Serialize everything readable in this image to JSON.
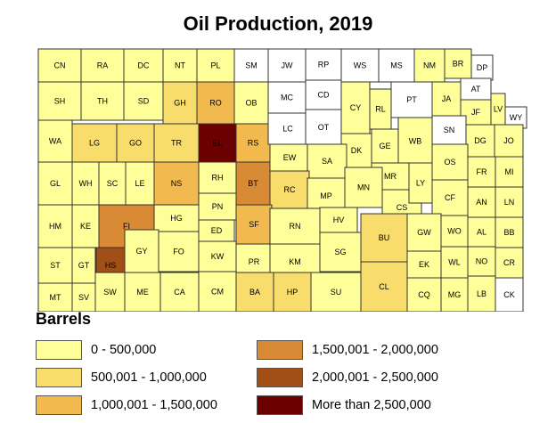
{
  "title": "Oil Production, 2019",
  "legend": {
    "title": "Barrels",
    "classes": [
      {
        "label": "0 - 500,000",
        "color": "#ffff99"
      },
      {
        "label": "500,001 - 1,000,000",
        "color": "#f8dc6c"
      },
      {
        "label": "1,000,001 - 1,500,000",
        "color": "#f2b94f"
      },
      {
        "label": "1,500,001 - 2,000,000",
        "color": "#d98a35"
      },
      {
        "label": "2,000,001 - 2,500,000",
        "color": "#a24f17"
      },
      {
        "label": "More than 2,500,000",
        "color": "#6b0000"
      }
    ],
    "no_data_color": "#ffffff"
  },
  "counties": [
    {
      "abbr": "CN",
      "cls": 0
    },
    {
      "abbr": "RA",
      "cls": 0
    },
    {
      "abbr": "DC",
      "cls": 0
    },
    {
      "abbr": "NT",
      "cls": 0
    },
    {
      "abbr": "PL",
      "cls": 0
    },
    {
      "abbr": "SM",
      "cls": -1
    },
    {
      "abbr": "JW",
      "cls": -1
    },
    {
      "abbr": "RP",
      "cls": -1
    },
    {
      "abbr": "WS",
      "cls": -1
    },
    {
      "abbr": "MS",
      "cls": -1
    },
    {
      "abbr": "NM",
      "cls": 0
    },
    {
      "abbr": "BR",
      "cls": 0
    },
    {
      "abbr": "DP",
      "cls": -1
    },
    {
      "abbr": "SH",
      "cls": 0
    },
    {
      "abbr": "TH",
      "cls": 0
    },
    {
      "abbr": "SD",
      "cls": 0
    },
    {
      "abbr": "GH",
      "cls": 1
    },
    {
      "abbr": "RO",
      "cls": 2
    },
    {
      "abbr": "OB",
      "cls": 0
    },
    {
      "abbr": "MC",
      "cls": -1
    },
    {
      "abbr": "CD",
      "cls": -1
    },
    {
      "abbr": "CY",
      "cls": 0
    },
    {
      "abbr": "RL",
      "cls": 0
    },
    {
      "abbr": "PT",
      "cls": -1
    },
    {
      "abbr": "JA",
      "cls": 0
    },
    {
      "abbr": "AT",
      "cls": -1
    },
    {
      "abbr": "JF",
      "cls": 0
    },
    {
      "abbr": "LV",
      "cls": 0
    },
    {
      "abbr": "WY",
      "cls": -1
    },
    {
      "abbr": "WA",
      "cls": 0
    },
    {
      "abbr": "LG",
      "cls": 1
    },
    {
      "abbr": "GO",
      "cls": 1
    },
    {
      "abbr": "TR",
      "cls": 1
    },
    {
      "abbr": "EL",
      "cls": 5
    },
    {
      "abbr": "RS",
      "cls": 2
    },
    {
      "abbr": "LC",
      "cls": -1
    },
    {
      "abbr": "OT",
      "cls": -1
    },
    {
      "abbr": "DK",
      "cls": 0
    },
    {
      "abbr": "GE",
      "cls": 0
    },
    {
      "abbr": "WB",
      "cls": 0
    },
    {
      "abbr": "SN",
      "cls": -1
    },
    {
      "abbr": "DG",
      "cls": 0
    },
    {
      "abbr": "JO",
      "cls": 0
    },
    {
      "abbr": "GL",
      "cls": 0
    },
    {
      "abbr": "WH",
      "cls": 0
    },
    {
      "abbr": "SC",
      "cls": 0
    },
    {
      "abbr": "LE",
      "cls": 0
    },
    {
      "abbr": "NS",
      "cls": 2
    },
    {
      "abbr": "RH",
      "cls": 0
    },
    {
      "abbr": "BT",
      "cls": 3
    },
    {
      "abbr": "EW",
      "cls": 0
    },
    {
      "abbr": "SA",
      "cls": 0
    },
    {
      "abbr": "MR",
      "cls": 0
    },
    {
      "abbr": "OS",
      "cls": 0
    },
    {
      "abbr": "FR",
      "cls": 0
    },
    {
      "abbr": "MI",
      "cls": 0
    },
    {
      "abbr": "RC",
      "cls": 1
    },
    {
      "abbr": "MP",
      "cls": 0
    },
    {
      "abbr": "MN",
      "cls": 0
    },
    {
      "abbr": "CS",
      "cls": 0
    },
    {
      "abbr": "LY",
      "cls": 0
    },
    {
      "abbr": "CF",
      "cls": 0
    },
    {
      "abbr": "AN",
      "cls": 0
    },
    {
      "abbr": "LN",
      "cls": 0
    },
    {
      "abbr": "HM",
      "cls": 0
    },
    {
      "abbr": "KE",
      "cls": 0
    },
    {
      "abbr": "FI",
      "cls": 3
    },
    {
      "abbr": "HG",
      "cls": 0
    },
    {
      "abbr": "PN",
      "cls": 0
    },
    {
      "abbr": "SF",
      "cls": 2
    },
    {
      "abbr": "RN",
      "cls": 0
    },
    {
      "abbr": "HV",
      "cls": 0
    },
    {
      "abbr": "BU",
      "cls": 1
    },
    {
      "abbr": "GW",
      "cls": 0
    },
    {
      "abbr": "WO",
      "cls": 0
    },
    {
      "abbr": "AL",
      "cls": 0
    },
    {
      "abbr": "BB",
      "cls": 0
    },
    {
      "abbr": "ED",
      "cls": 0
    },
    {
      "abbr": "GY",
      "cls": 0
    },
    {
      "abbr": "FO",
      "cls": 0
    },
    {
      "abbr": "ST",
      "cls": 0
    },
    {
      "abbr": "GT",
      "cls": 0
    },
    {
      "abbr": "HS",
      "cls": 4
    },
    {
      "abbr": "KW",
      "cls": 0
    },
    {
      "abbr": "PR",
      "cls": 0
    },
    {
      "abbr": "KM",
      "cls": 0
    },
    {
      "abbr": "SG",
      "cls": 0
    },
    {
      "abbr": "EK",
      "cls": 0
    },
    {
      "abbr": "WL",
      "cls": 0
    },
    {
      "abbr": "NO",
      "cls": 0
    },
    {
      "abbr": "CR",
      "cls": 0
    },
    {
      "abbr": "MT",
      "cls": 0
    },
    {
      "abbr": "SV",
      "cls": 0
    },
    {
      "abbr": "SW",
      "cls": 0
    },
    {
      "abbr": "ME",
      "cls": 0
    },
    {
      "abbr": "CA",
      "cls": 0
    },
    {
      "abbr": "CM",
      "cls": 0
    },
    {
      "abbr": "BA",
      "cls": 1
    },
    {
      "abbr": "HP",
      "cls": 1
    },
    {
      "abbr": "SU",
      "cls": 0
    },
    {
      "abbr": "CL",
      "cls": 1
    },
    {
      "abbr": "CQ",
      "cls": 0
    },
    {
      "abbr": "MG",
      "cls": 0
    },
    {
      "abbr": "LB",
      "cls": 0
    },
    {
      "abbr": "CK",
      "cls": -1
    }
  ]
}
